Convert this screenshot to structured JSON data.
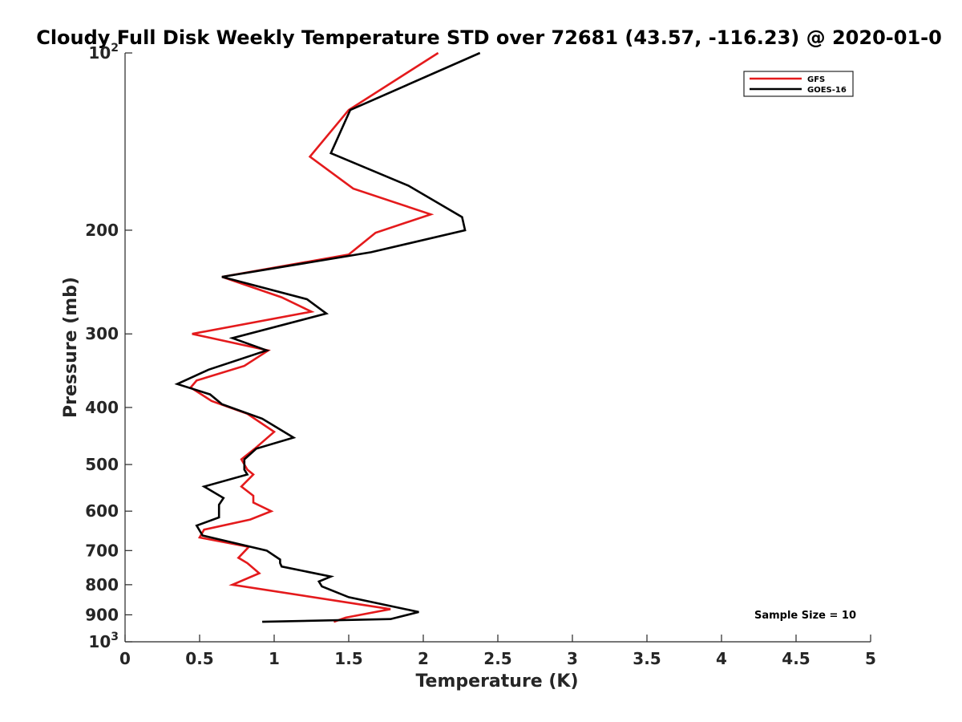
{
  "chart_data": {
    "type": "line",
    "title": "Cloudy Full Disk Weekly Temperature STD over 72681 (43.57, -116.23) @ 2020-01-0",
    "xlabel": "Temperature (K)",
    "ylabel": "Pressure (mb)",
    "xlim": [
      0,
      5
    ],
    "ylim": [
      100,
      1000
    ],
    "y_scale": "log",
    "y_reversed": true,
    "x_ticks": [
      "0",
      "0.5",
      "1",
      "1.5",
      "2",
      "2.5",
      "3",
      "3.5",
      "4",
      "4.5",
      "5"
    ],
    "y_ticks": [
      {
        "value": 100,
        "base": "10",
        "exp": "2"
      },
      {
        "value": 200,
        "label": "200"
      },
      {
        "value": 300,
        "label": "300"
      },
      {
        "value": 400,
        "label": "400"
      },
      {
        "value": 500,
        "label": "500"
      },
      {
        "value": 600,
        "label": "600"
      },
      {
        "value": 700,
        "label": "700"
      },
      {
        "value": 800,
        "label": "800"
      },
      {
        "value": 900,
        "label": "900"
      },
      {
        "value": 1000,
        "base": "10",
        "exp": "3"
      }
    ],
    "grid": false,
    "legend_position": "top-right",
    "annotation": "Sample Size = 10",
    "series": [
      {
        "name": "GFS",
        "color": "#e41a1c",
        "points": [
          [
            2.1,
            100
          ],
          [
            1.5,
            125
          ],
          [
            1.24,
            150
          ],
          [
            1.53,
            170
          ],
          [
            2.05,
            188
          ],
          [
            1.68,
            202
          ],
          [
            1.5,
            220
          ],
          [
            0.65,
            240
          ],
          [
            1.05,
            260
          ],
          [
            1.25,
            275
          ],
          [
            0.45,
            300
          ],
          [
            0.96,
            320
          ],
          [
            0.8,
            340
          ],
          [
            0.48,
            360
          ],
          [
            0.44,
            370
          ],
          [
            0.58,
            390
          ],
          [
            0.82,
            410
          ],
          [
            1.0,
            440
          ],
          [
            0.87,
            470
          ],
          [
            0.78,
            490
          ],
          [
            0.82,
            510
          ],
          [
            0.86,
            520
          ],
          [
            0.78,
            545
          ],
          [
            0.86,
            565
          ],
          [
            0.86,
            580
          ],
          [
            0.98,
            600
          ],
          [
            0.84,
            620
          ],
          [
            0.53,
            645
          ],
          [
            0.5,
            665
          ],
          [
            0.83,
            690
          ],
          [
            0.76,
            720
          ],
          [
            0.82,
            735
          ],
          [
            0.9,
            765
          ],
          [
            0.72,
            800
          ],
          [
            1.78,
            880
          ],
          [
            1.48,
            910
          ],
          [
            1.4,
            925
          ]
        ]
      },
      {
        "name": "GOES-16",
        "color": "#000000",
        "points": [
          [
            2.38,
            100
          ],
          [
            1.51,
            125
          ],
          [
            1.38,
            148
          ],
          [
            1.9,
            168
          ],
          [
            2.26,
            190
          ],
          [
            2.28,
            200
          ],
          [
            1.65,
            218
          ],
          [
            0.65,
            240
          ],
          [
            1.22,
            262
          ],
          [
            1.35,
            277
          ],
          [
            0.72,
            305
          ],
          [
            0.95,
            320
          ],
          [
            0.56,
            345
          ],
          [
            0.35,
            365
          ],
          [
            0.57,
            380
          ],
          [
            0.65,
            395
          ],
          [
            0.92,
            418
          ],
          [
            1.13,
            450
          ],
          [
            0.88,
            470
          ],
          [
            0.8,
            490
          ],
          [
            0.8,
            510
          ],
          [
            0.82,
            520
          ],
          [
            0.53,
            545
          ],
          [
            0.66,
            570
          ],
          [
            0.63,
            585
          ],
          [
            0.63,
            600
          ],
          [
            0.63,
            615
          ],
          [
            0.48,
            635
          ],
          [
            0.52,
            660
          ],
          [
            0.95,
            700
          ],
          [
            1.04,
            725
          ],
          [
            1.04,
            735
          ],
          [
            1.05,
            745
          ],
          [
            1.38,
            775
          ],
          [
            1.3,
            790
          ],
          [
            1.32,
            805
          ],
          [
            1.5,
            840
          ],
          [
            1.97,
            890
          ],
          [
            1.78,
            915
          ],
          [
            0.92,
            925
          ]
        ]
      }
    ]
  }
}
